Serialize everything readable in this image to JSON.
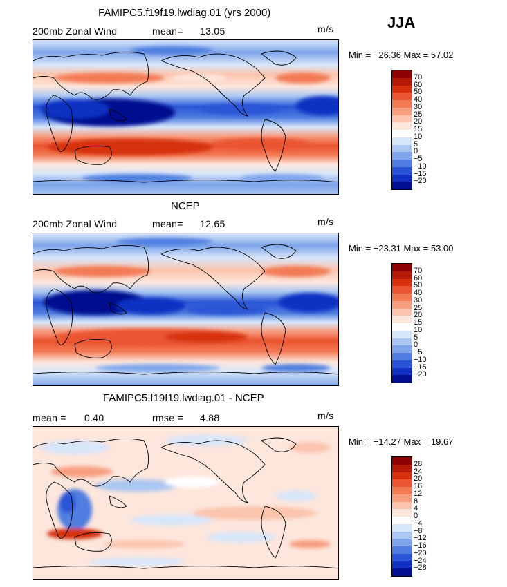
{
  "season": "JJA",
  "panels": [
    {
      "title": "FAMIPC5.f19f19.lwdiag.01 (yrs 2000)",
      "left_label": "200mb Zonal Wind",
      "mean_label": "mean=",
      "mean_value": "13.05",
      "units": "m/s",
      "minmax": "Min = −26.36 Max = 57.02"
    },
    {
      "title": "NCEP",
      "left_label": "200mb Zonal Wind",
      "mean_label": "mean=",
      "mean_value": "12.65",
      "units": "m/s",
      "minmax": "Min = −23.31 Max = 53.00"
    },
    {
      "title": "FAMIPC5.f19f19.lwdiag.01 - NCEP",
      "left_label": "mean =",
      "mean_label": "0.40",
      "rmse_label": "rmse =",
      "rmse_value": "4.88",
      "units": "m/s",
      "minmax": "Min = −14.27 Max = 19.67"
    }
  ],
  "colorbar_abs": {
    "labels": [
      "70",
      "60",
      "50",
      "40",
      "30",
      "25",
      "20",
      "15",
      "10",
      "5",
      "0",
      "−5",
      "−10",
      "−15",
      "−20"
    ],
    "colors": [
      "#8b0000",
      "#b51a0a",
      "#d6300f",
      "#ea5430",
      "#f27a55",
      "#f79d80",
      "#fbc4ad",
      "#fde6dc",
      "#ffffff",
      "#d8e6fa",
      "#aac7f2",
      "#7ea5ea",
      "#4f7ee0",
      "#2a55d6",
      "#1131c2",
      "#000f8f"
    ]
  },
  "colorbar_diff": {
    "labels": [
      "28",
      "24",
      "20",
      "16",
      "12",
      "8",
      "4",
      "0",
      "−4",
      "−8",
      "−12",
      "−16",
      "−20",
      "−24",
      "−28"
    ],
    "colors": [
      "#8b0000",
      "#b51a0a",
      "#d6300f",
      "#ea5430",
      "#f27a55",
      "#f79d80",
      "#fbc4ad",
      "#fde6dc",
      "#ffffff",
      "#d8e6fa",
      "#aac7f2",
      "#7ea5ea",
      "#4f7ee0",
      "#2a55d6",
      "#1131c2",
      "#000f8f"
    ]
  }
}
